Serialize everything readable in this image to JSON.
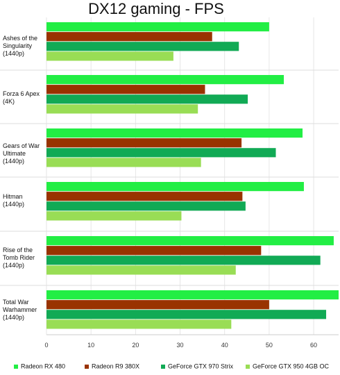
{
  "chart_data": {
    "type": "bar",
    "orientation": "horizontal",
    "title": "DX12 gaming - FPS",
    "categories": [
      "Ashes of the Singularity (1440p)",
      "Forza 6 Apex (4K)",
      "Gears of War Ultimate (1440p)",
      "Hitman (1440p)",
      "Rise of the Tomb Rider (1440p)",
      "Total War Warhammer (1440p)"
    ],
    "series": [
      {
        "name": "Radeon RX 480",
        "color": "#22ee44",
        "values": [
          50,
          53.3,
          57.5,
          57.8,
          64.5,
          65.6
        ]
      },
      {
        "name": "Radeon R9 380X",
        "color": "#993300",
        "values": [
          37.2,
          35.6,
          43.8,
          44,
          48.2,
          50
        ]
      },
      {
        "name": "GeForce GTX 970 Strix",
        "color": "#11aa55",
        "values": [
          43.2,
          45.2,
          51.5,
          44.7,
          61.5,
          62.8
        ]
      },
      {
        "name": "GeForce GTX 950 4GB OC",
        "color": "#99dd55",
        "values": [
          28.5,
          34,
          34.7,
          30.3,
          42.5,
          41.5
        ]
      }
    ],
    "legend_labels": [
      "Radeon RX 480",
      "Radeon R9 380X",
      "GeForce GTX 970 Strix",
      "GeForce GTX 950 4GB OC"
    ],
    "xlim": [
      0,
      65.6
    ],
    "x_ticks": [
      0,
      10,
      20,
      30,
      40,
      50,
      60
    ],
    "grid": true,
    "legend_position": "bottom"
  }
}
